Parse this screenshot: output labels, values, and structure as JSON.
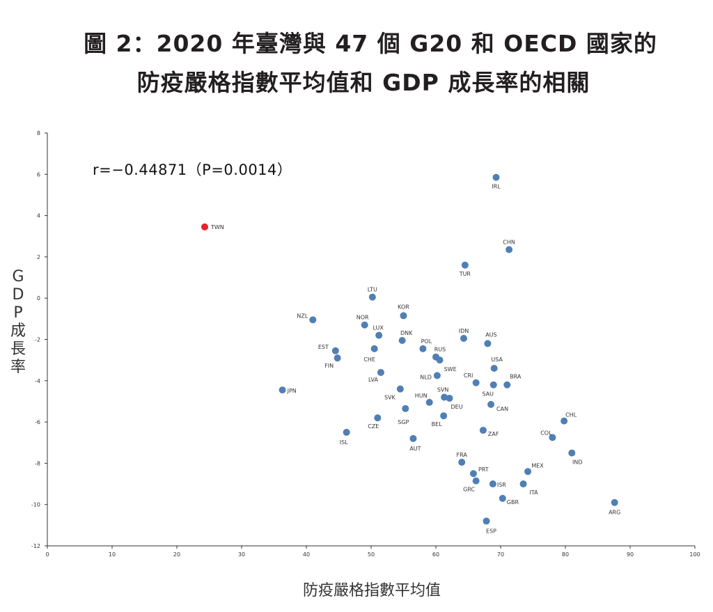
{
  "title_line1": "圖 2：2020 年臺灣與 47 個 G20 和 OECD 國家的",
  "title_line2": "防疫嚴格指數平均值和 GDP 成長率的相關",
  "correlation_text": "r=−0.44871（P=0.0014）",
  "ylabel_chars": [
    "G",
    "D",
    "P",
    "成",
    "長",
    "率"
  ],
  "colors": {
    "default_point": "#4f7fb5",
    "highlight_point": "#e0262a"
  },
  "chart_data": {
    "type": "scatter",
    "title": "圖 2：2020 年臺灣與 47 個 G20 和 OECD 國家的 防疫嚴格指數平均值和 GDP 成長率的相關",
    "xlabel": "防疫嚴格指數平均值",
    "ylabel": "GDP 成長率",
    "xlim": [
      0,
      100
    ],
    "ylim": [
      -12,
      8
    ],
    "xticks": [
      0,
      10,
      20,
      30,
      40,
      50,
      60,
      70,
      80,
      90,
      100
    ],
    "yticks": [
      -12,
      -10,
      -8,
      -6,
      -4,
      -2,
      0,
      2,
      4,
      6,
      8
    ],
    "grid": false,
    "highlight": "TWN",
    "points": [
      {
        "label": "TWN",
        "x": 24.3,
        "y": 3.45
      },
      {
        "label": "IRL",
        "x": 69.3,
        "y": 5.85
      },
      {
        "label": "CHN",
        "x": 71.3,
        "y": 2.35
      },
      {
        "label": "TUR",
        "x": 64.5,
        "y": 1.6
      },
      {
        "label": "LTU",
        "x": 50.2,
        "y": 0.05
      },
      {
        "label": "KOR",
        "x": 55.0,
        "y": -0.85
      },
      {
        "label": "NZL",
        "x": 41.0,
        "y": -1.05
      },
      {
        "label": "NOR",
        "x": 49.0,
        "y": -1.3
      },
      {
        "label": "LUX",
        "x": 51.2,
        "y": -1.8
      },
      {
        "label": "DNK",
        "x": 54.8,
        "y": -2.05
      },
      {
        "label": "IDN",
        "x": 64.3,
        "y": -1.95
      },
      {
        "label": "AUS",
        "x": 68.0,
        "y": -2.2
      },
      {
        "label": "POL",
        "x": 58.0,
        "y": -2.45
      },
      {
        "label": "EST",
        "x": 44.5,
        "y": -2.55
      },
      {
        "label": "CHE",
        "x": 50.5,
        "y": -2.45
      },
      {
        "label": "FIN",
        "x": 44.8,
        "y": -2.9
      },
      {
        "label": "RUS",
        "x": 60.0,
        "y": -2.85
      },
      {
        "label": "SWE",
        "x": 60.6,
        "y": -3.0
      },
      {
        "label": "USA",
        "x": 69.0,
        "y": -3.4
      },
      {
        "label": "LVA",
        "x": 51.5,
        "y": -3.6
      },
      {
        "label": "NLD",
        "x": 60.2,
        "y": -3.75
      },
      {
        "label": "CRI",
        "x": 66.2,
        "y": -4.1
      },
      {
        "label": "BRA",
        "x": 71.0,
        "y": -4.2
      },
      {
        "label": "SAU",
        "x": 68.9,
        "y": -4.2
      },
      {
        "label": "JPN",
        "x": 36.3,
        "y": -4.45
      },
      {
        "label": "SVK",
        "x": 54.5,
        "y": -4.4
      },
      {
        "label": "SVN",
        "x": 61.3,
        "y": -4.8
      },
      {
        "label": "DEU",
        "x": 62.1,
        "y": -4.85
      },
      {
        "label": "HUN",
        "x": 59.0,
        "y": -5.05
      },
      {
        "label": "CAN",
        "x": 68.5,
        "y": -5.15
      },
      {
        "label": "SGP",
        "x": 55.3,
        "y": -5.35
      },
      {
        "label": "BEL",
        "x": 61.2,
        "y": -5.7
      },
      {
        "label": "CZE",
        "x": 51.0,
        "y": -5.8
      },
      {
        "label": "CHL",
        "x": 79.8,
        "y": -5.95
      },
      {
        "label": "ISL",
        "x": 46.2,
        "y": -6.5
      },
      {
        "label": "ZAF",
        "x": 67.3,
        "y": -6.4
      },
      {
        "label": "COL",
        "x": 78.0,
        "y": -6.75
      },
      {
        "label": "AUT",
        "x": 56.5,
        "y": -6.8
      },
      {
        "label": "IND",
        "x": 81.0,
        "y": -7.5
      },
      {
        "label": "FRA",
        "x": 64.0,
        "y": -7.95
      },
      {
        "label": "MEX",
        "x": 74.2,
        "y": -8.4
      },
      {
        "label": "PRT",
        "x": 65.8,
        "y": -8.5
      },
      {
        "label": "GRC",
        "x": 66.2,
        "y": -8.85
      },
      {
        "label": "ISR",
        "x": 68.8,
        "y": -9.0
      },
      {
        "label": "ITA",
        "x": 73.5,
        "y": -9.0
      },
      {
        "label": "GBR",
        "x": 70.3,
        "y": -9.7
      },
      {
        "label": "ARG",
        "x": 87.6,
        "y": -9.9
      },
      {
        "label": "ESP",
        "x": 67.8,
        "y": -10.8
      }
    ]
  }
}
